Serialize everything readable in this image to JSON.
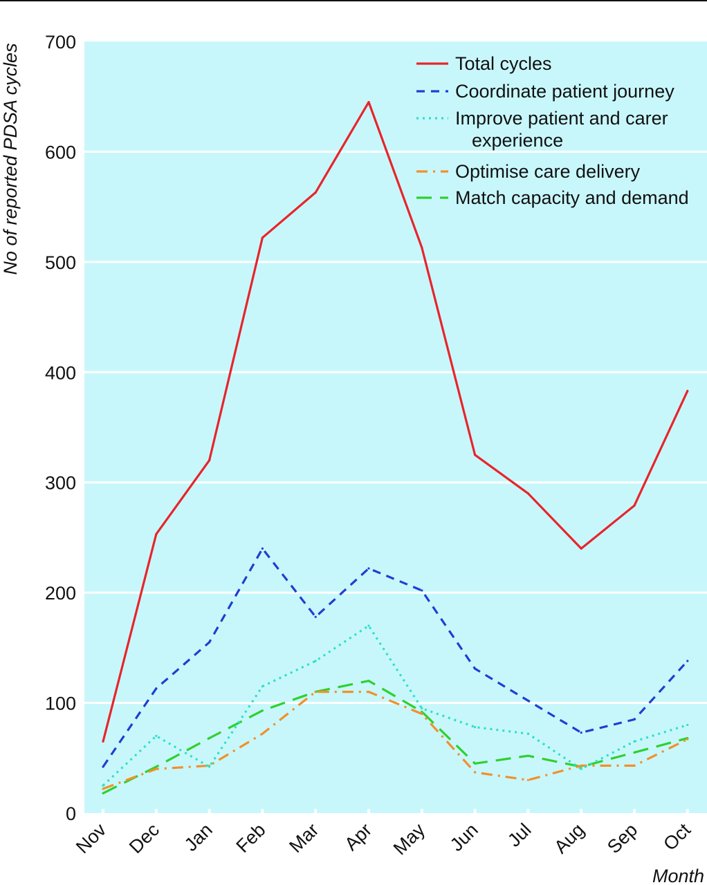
{
  "chart_data": {
    "type": "line",
    "ylabel": "No of reported PDSA cycles",
    "xlabel": "Month",
    "ylim": [
      0,
      700
    ],
    "yticks": [
      0,
      100,
      200,
      300,
      400,
      500,
      600,
      700
    ],
    "categories": [
      "Nov",
      "Dec",
      "Jan",
      "Feb",
      "Mar",
      "Apr",
      "May",
      "Jun",
      "Jul",
      "Aug",
      "Sep",
      "Oct"
    ],
    "grid": true,
    "legend_position": "top-right",
    "series": [
      {
        "name": "Total cycles",
        "color": "#e8242b",
        "dash": "solid",
        "values": [
          65,
          253,
          320,
          522,
          563,
          645,
          513,
          325,
          290,
          240,
          279,
          383
        ]
      },
      {
        "name": "Coordinate patient journey",
        "color": "#1f3fd1",
        "dash": "dash",
        "values": [
          42,
          113,
          155,
          240,
          178,
          222,
          202,
          131,
          102,
          73,
          85,
          138
        ]
      },
      {
        "name": "Improve patient and carer experience",
        "name_lines": [
          "Improve patient and carer",
          "experience"
        ],
        "color": "#2fe0c8",
        "dash": "dot",
        "values": [
          25,
          70,
          42,
          115,
          138,
          170,
          95,
          78,
          72,
          40,
          65,
          80
        ]
      },
      {
        "name": "Optimise care delivery",
        "color": "#f2902a",
        "dash": "dashdot",
        "values": [
          22,
          40,
          43,
          72,
          110,
          110,
          90,
          37,
          30,
          43,
          43,
          67
        ]
      },
      {
        "name": "Match capacity and demand",
        "color": "#2ed12e",
        "dash": "longdash",
        "values": [
          18,
          42,
          68,
          93,
          110,
          120,
          92,
          45,
          52,
          42,
          55,
          68
        ]
      }
    ]
  }
}
